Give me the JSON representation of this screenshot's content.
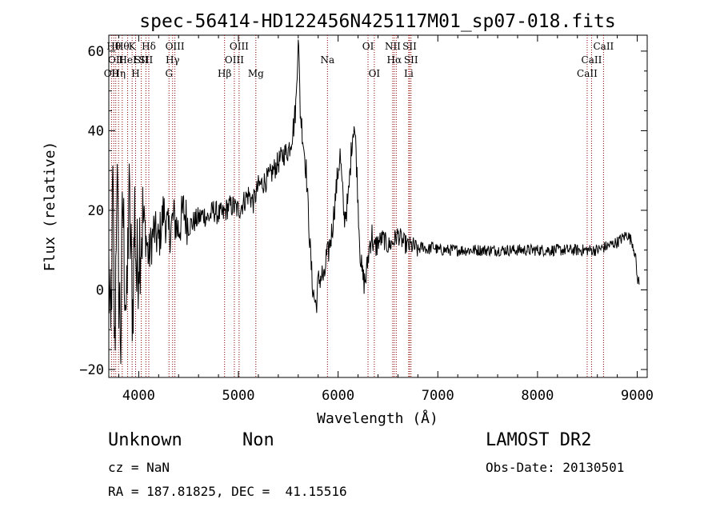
{
  "chart_data": {
    "type": "line",
    "title": "spec-56414-HD122456N425117M01_sp07-018.fits",
    "xlabel": "Wavelength (Å)",
    "ylabel": "Flux (relative)",
    "xlim": [
      3700,
      9100
    ],
    "ylim": [
      -22,
      64
    ],
    "xticks": [
      4000,
      5000,
      6000,
      7000,
      8000,
      9000
    ],
    "yticks": [
      -20,
      0,
      20,
      40,
      60
    ],
    "grid": false,
    "line_color": "#000000",
    "marker_color": "#8b0000",
    "series": [
      {
        "x": [
          3700,
          3720,
          3740,
          3760,
          3780,
          3800,
          3820,
          3840,
          3860,
          3880,
          3900,
          3920,
          3940,
          3960,
          3980,
          4000,
          4050,
          4100,
          4150,
          4200,
          4250,
          4300,
          4350,
          4400,
          4450,
          4500,
          4550,
          4600,
          4650,
          4700,
          4750,
          4800,
          4850,
          4900,
          4950,
          5000,
          5050,
          5100,
          5150,
          5200,
          5250,
          5300,
          5350,
          5400,
          5450,
          5500,
          5530,
          5560,
          5580,
          5600,
          5620,
          5640,
          5660,
          5680,
          5700,
          5720,
          5740,
          5760,
          5780,
          5800,
          5820,
          5840,
          5860,
          5880,
          5900,
          5920,
          5940,
          5960,
          5980,
          6000,
          6020,
          6040,
          6060,
          6080,
          6100,
          6120,
          6140,
          6160,
          6180,
          6200,
          6220,
          6240,
          6260,
          6280,
          6300,
          6320,
          6340,
          6360,
          6380,
          6400,
          6450,
          6500,
          6550,
          6600,
          6650,
          6700,
          6750,
          6800,
          6850,
          6900,
          6950,
          7000,
          7100,
          7200,
          7300,
          7400,
          7500,
          7600,
          7700,
          7800,
          7900,
          8000,
          8100,
          8200,
          8300,
          8400,
          8500,
          8600,
          8700,
          8800,
          8850,
          8900,
          8950,
          8980,
          9000,
          9020
        ],
        "y": [
          5,
          -15,
          25,
          -18,
          30,
          2,
          -12,
          22,
          5,
          -8,
          24,
          10,
          -5,
          20,
          2,
          12,
          18,
          8,
          15,
          12,
          20,
          14,
          18,
          15,
          20,
          16,
          17,
          18,
          19,
          18,
          20,
          19,
          19,
          21,
          21,
          20,
          22,
          24,
          22,
          26,
          27,
          28,
          30,
          32,
          34,
          35,
          38,
          42,
          48,
          65,
          45,
          40,
          35,
          30,
          20,
          10,
          2,
          -2,
          -4,
          2,
          3,
          4,
          2,
          8,
          9,
          12,
          15,
          20,
          25,
          30,
          34,
          26,
          18,
          20,
          22,
          30,
          38,
          42,
          35,
          22,
          10,
          4,
          2,
          3,
          8,
          12,
          14,
          10,
          11,
          12,
          13,
          11,
          12,
          14,
          12,
          11,
          11,
          10,
          11,
          10,
          11,
          10,
          10,
          10,
          10,
          10,
          10,
          10,
          10,
          10,
          10,
          10,
          10,
          10,
          10,
          10,
          10,
          10,
          11,
          12,
          13,
          14,
          12,
          9,
          3,
          2
        ]
      }
    ],
    "lines": [
      {
        "x": 3727,
        "row": 3,
        "label": "OII"
      },
      {
        "x": 3750,
        "row": 1,
        "label": "Hθ"
      },
      {
        "x": 3770,
        "row": 2,
        "label": "OII"
      },
      {
        "x": 3798,
        "row": 3,
        "label": "Hη"
      },
      {
        "x": 3835,
        "row": 1,
        "label": "Hθ"
      },
      {
        "x": 3889,
        "row": 2,
        "label": "HeI"
      },
      {
        "x": 3934,
        "row": 1,
        "label": "K"
      },
      {
        "x": 3969,
        "row": 3,
        "label": "H"
      },
      {
        "x": 4026,
        "row": 2,
        "label": "SII"
      },
      {
        "x": 4101,
        "row": 1,
        "label": "Hδ"
      },
      {
        "x": 4072,
        "row": 2,
        "label": "SII"
      },
      {
        "x": 4304,
        "row": 3,
        "label": "G"
      },
      {
        "x": 4340,
        "row": 2,
        "label": "Hγ"
      },
      {
        "x": 4363,
        "row": 1,
        "label": "OIII"
      },
      {
        "x": 4861,
        "row": 3,
        "label": "Hβ"
      },
      {
        "x": 4959,
        "row": 2,
        "label": "OIII"
      },
      {
        "x": 5007,
        "row": 1,
        "label": "OIII"
      },
      {
        "x": 5175,
        "row": 3,
        "label": "Mg"
      },
      {
        "x": 5893,
        "row": 2,
        "label": "Na"
      },
      {
        "x": 6300,
        "row": 1,
        "label": "OI"
      },
      {
        "x": 6363,
        "row": 3,
        "label": "OI"
      },
      {
        "x": 6548,
        "row": 1,
        "label": "NII"
      },
      {
        "x": 6563,
        "row": 2,
        "label": "Hα"
      },
      {
        "x": 6583,
        "row": 1,
        "label": ""
      },
      {
        "x": 6708,
        "row": 3,
        "label": "Li"
      },
      {
        "x": 6717,
        "row": 1,
        "label": "SII"
      },
      {
        "x": 6731,
        "row": 2,
        "label": "SII"
      },
      {
        "x": 8498,
        "row": 3,
        "label": "CaII"
      },
      {
        "x": 8542,
        "row": 2,
        "label": "CaII"
      },
      {
        "x": 8662,
        "row": 1,
        "label": "CaII"
      }
    ]
  },
  "info": {
    "object_class": "Unknown",
    "subclass": "Non",
    "survey": "LAMOST DR2",
    "cz": "cz = NaN",
    "obs_date": "Obs-Date: 20130501",
    "coords": "RA = 187.81825, DEC =  41.15516"
  }
}
